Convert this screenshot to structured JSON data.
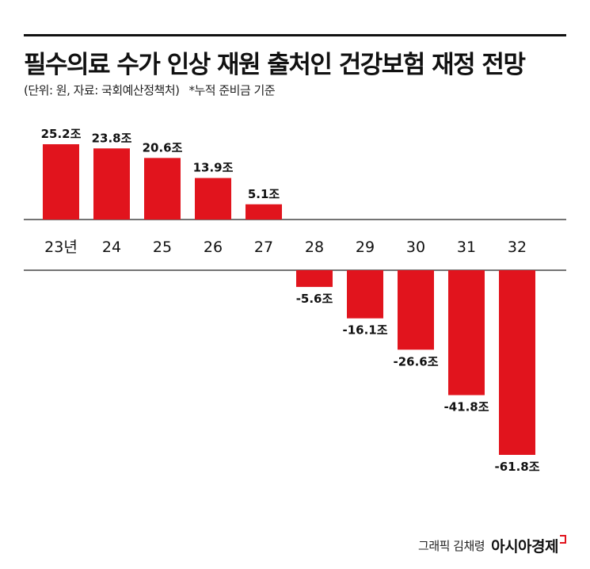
{
  "title": "필수의료 수가 인상 재원 출처인 건강보험 재정 전망",
  "subtitle": "(단위: 원, 자료: 국회예산정책처)",
  "note": "*누적 준비금 기준",
  "credit": "그래픽 김채령",
  "publisher_logo": "아시아경제",
  "colors": {
    "bar": "#e1141d",
    "text": "#111111"
  },
  "chart_data": {
    "type": "bar",
    "title": "필수의료 수가 인상 재원 출처인 건강보험 재정 전망",
    "categories": [
      "23년",
      "24",
      "25",
      "26",
      "27",
      "28",
      "29",
      "30",
      "31",
      "32"
    ],
    "values": [
      25.2,
      23.8,
      20.6,
      13.9,
      5.1,
      -5.6,
      -16.1,
      -26.6,
      -41.8,
      -61.8
    ],
    "data_labels": [
      "25.2조",
      "23.8조",
      "20.6조",
      "13.9조",
      "5.1조",
      "-5.6조",
      "-16.1조",
      "-26.6조",
      "-41.8조",
      "-61.8조"
    ],
    "unit": "조",
    "xlabel": "",
    "ylabel": "",
    "grid": false,
    "legend": "none"
  }
}
